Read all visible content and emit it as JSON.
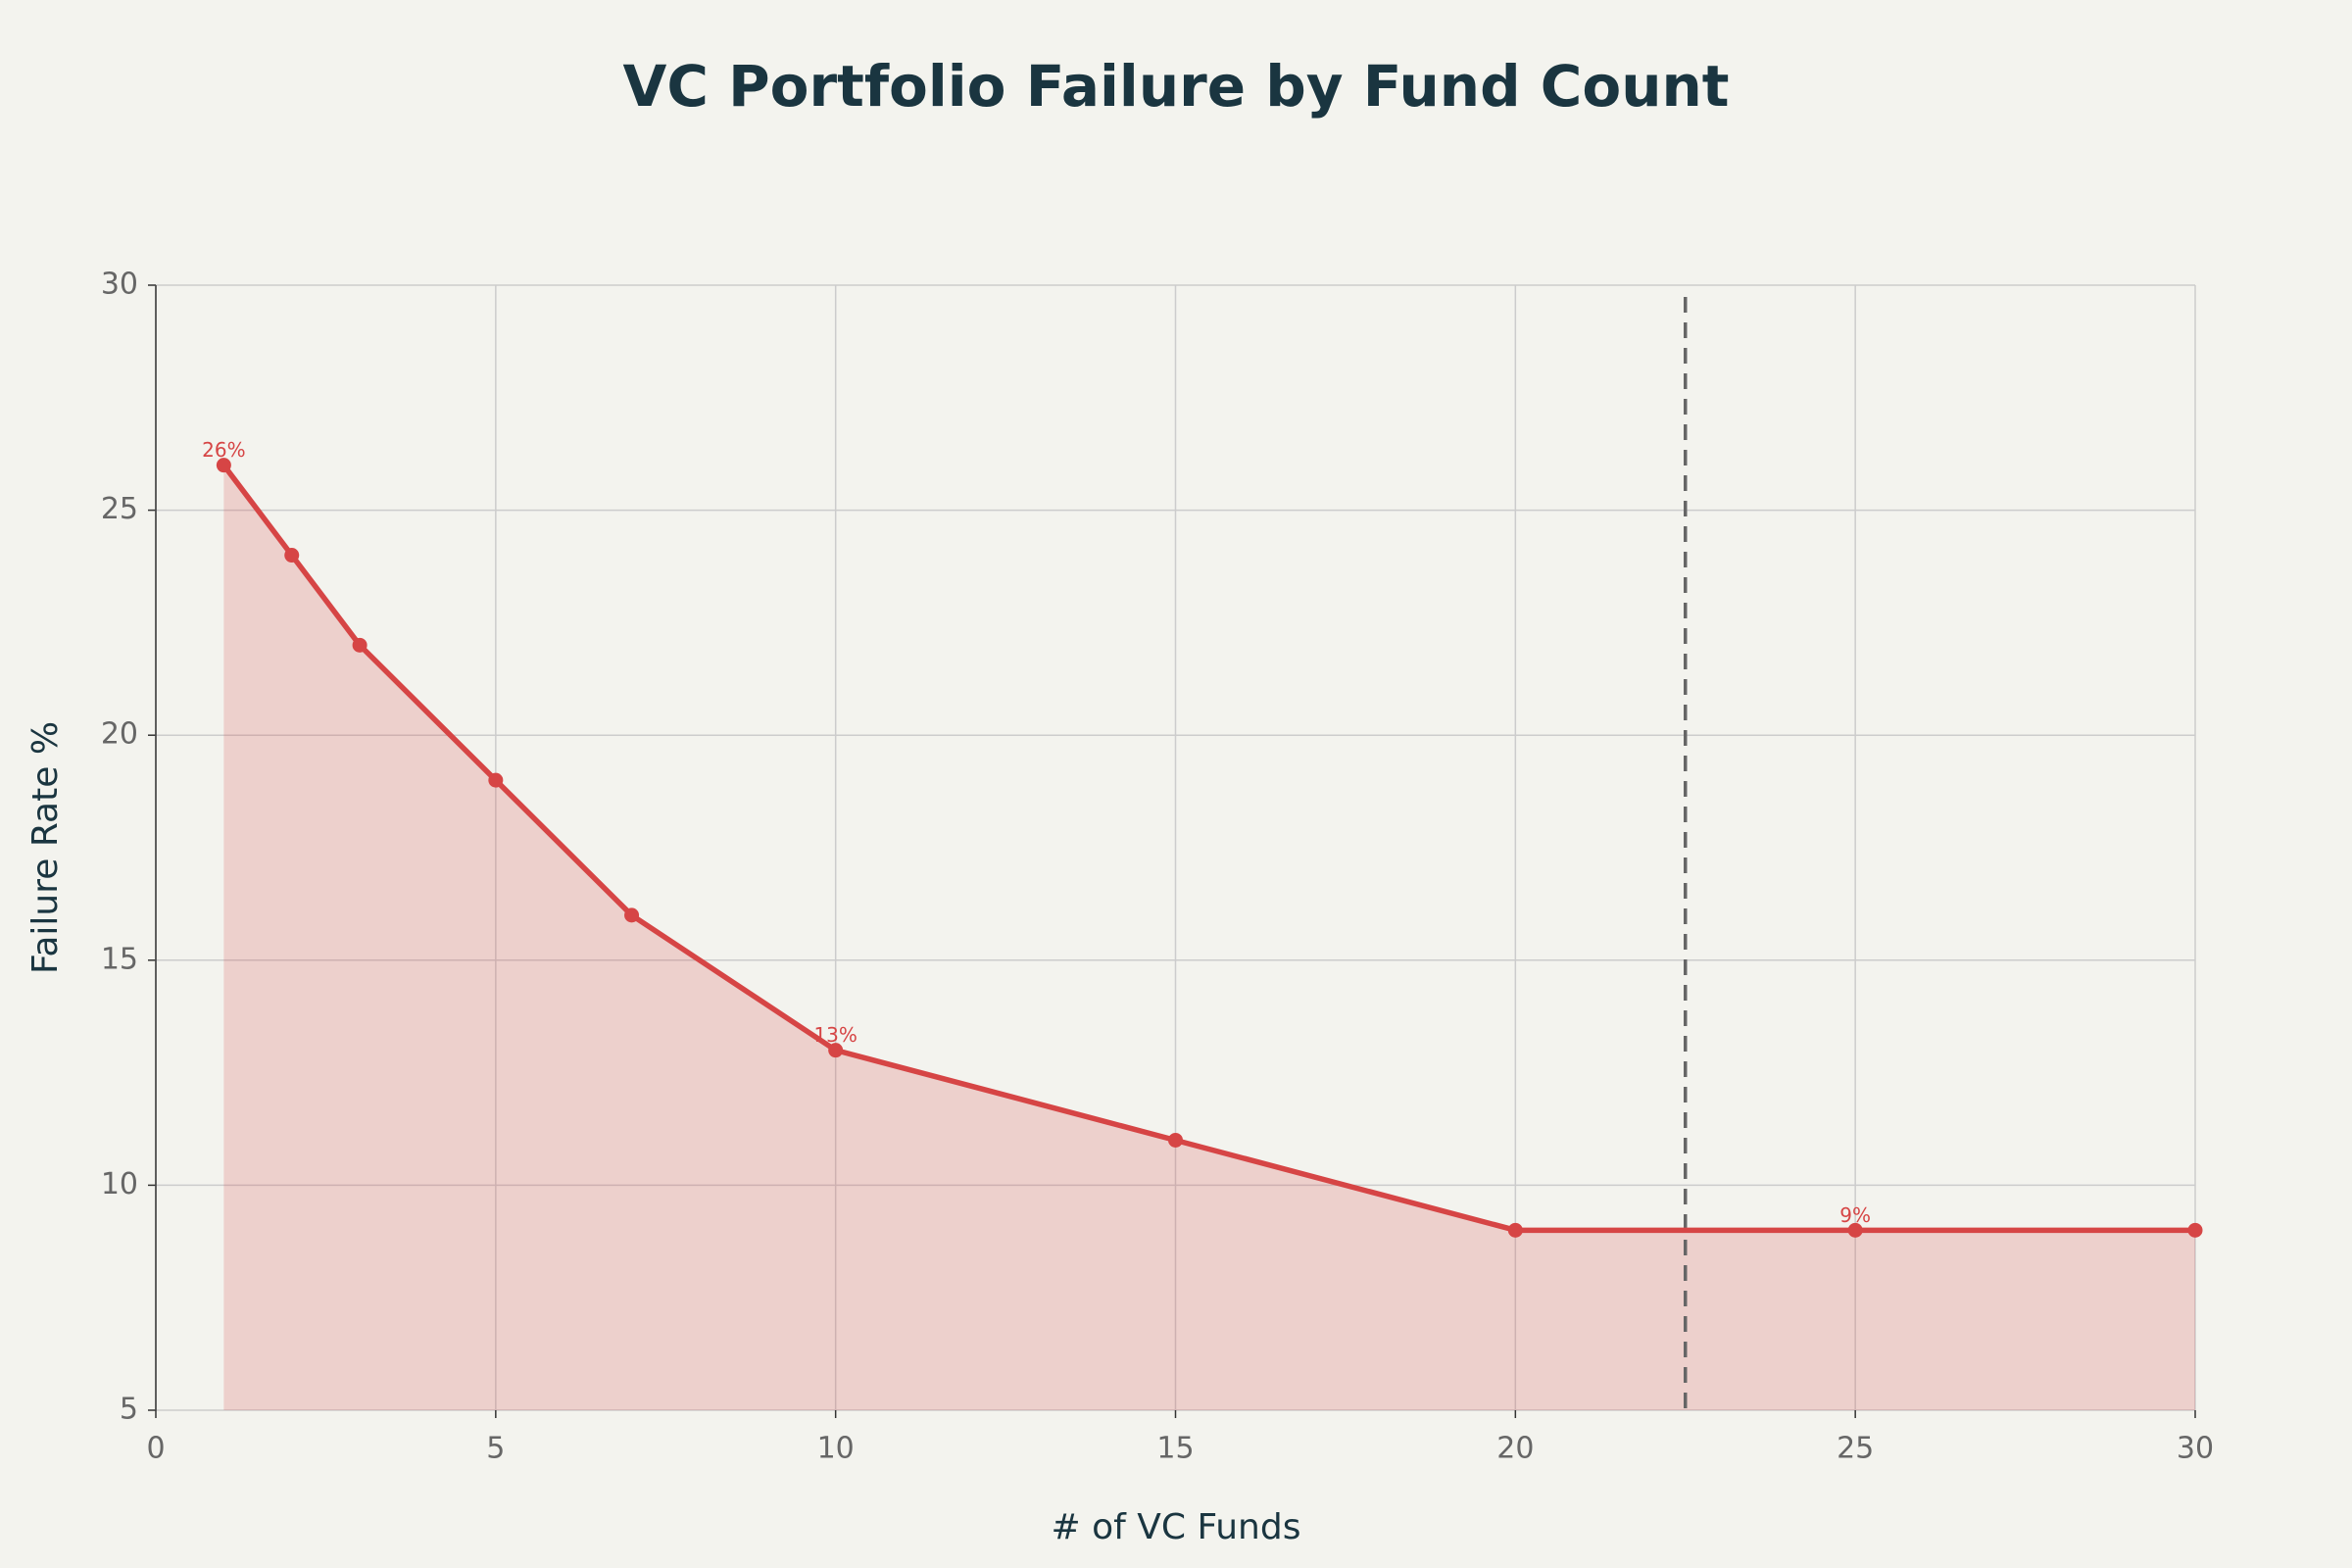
{
  "chart_data": {
    "type": "line",
    "title": "VC Portfolio Failure by Fund Count",
    "x_label": "# of VC Funds",
    "y_label": "Failure Rate %",
    "x": [
      1,
      2,
      3,
      5,
      7,
      10,
      15,
      20,
      25,
      30
    ],
    "series": [
      {
        "name": "Failure Rate",
        "color": "#d64545",
        "values": [
          26,
          24,
          22,
          19,
          16,
          13,
          11,
          9,
          9,
          9
        ],
        "value_labels": [
          "26%",
          null,
          null,
          null,
          null,
          "13%",
          null,
          null,
          "9%",
          null
        ]
      }
    ],
    "area_fill": true,
    "reference_x": 22.5,
    "xlim": [
      0,
      30
    ],
    "xticks": [
      0,
      5,
      10,
      15,
      20,
      25,
      30
    ],
    "ylim": [
      5,
      30
    ],
    "yticks": [
      5,
      10,
      15,
      20,
      25,
      30
    ],
    "grid": true
  }
}
